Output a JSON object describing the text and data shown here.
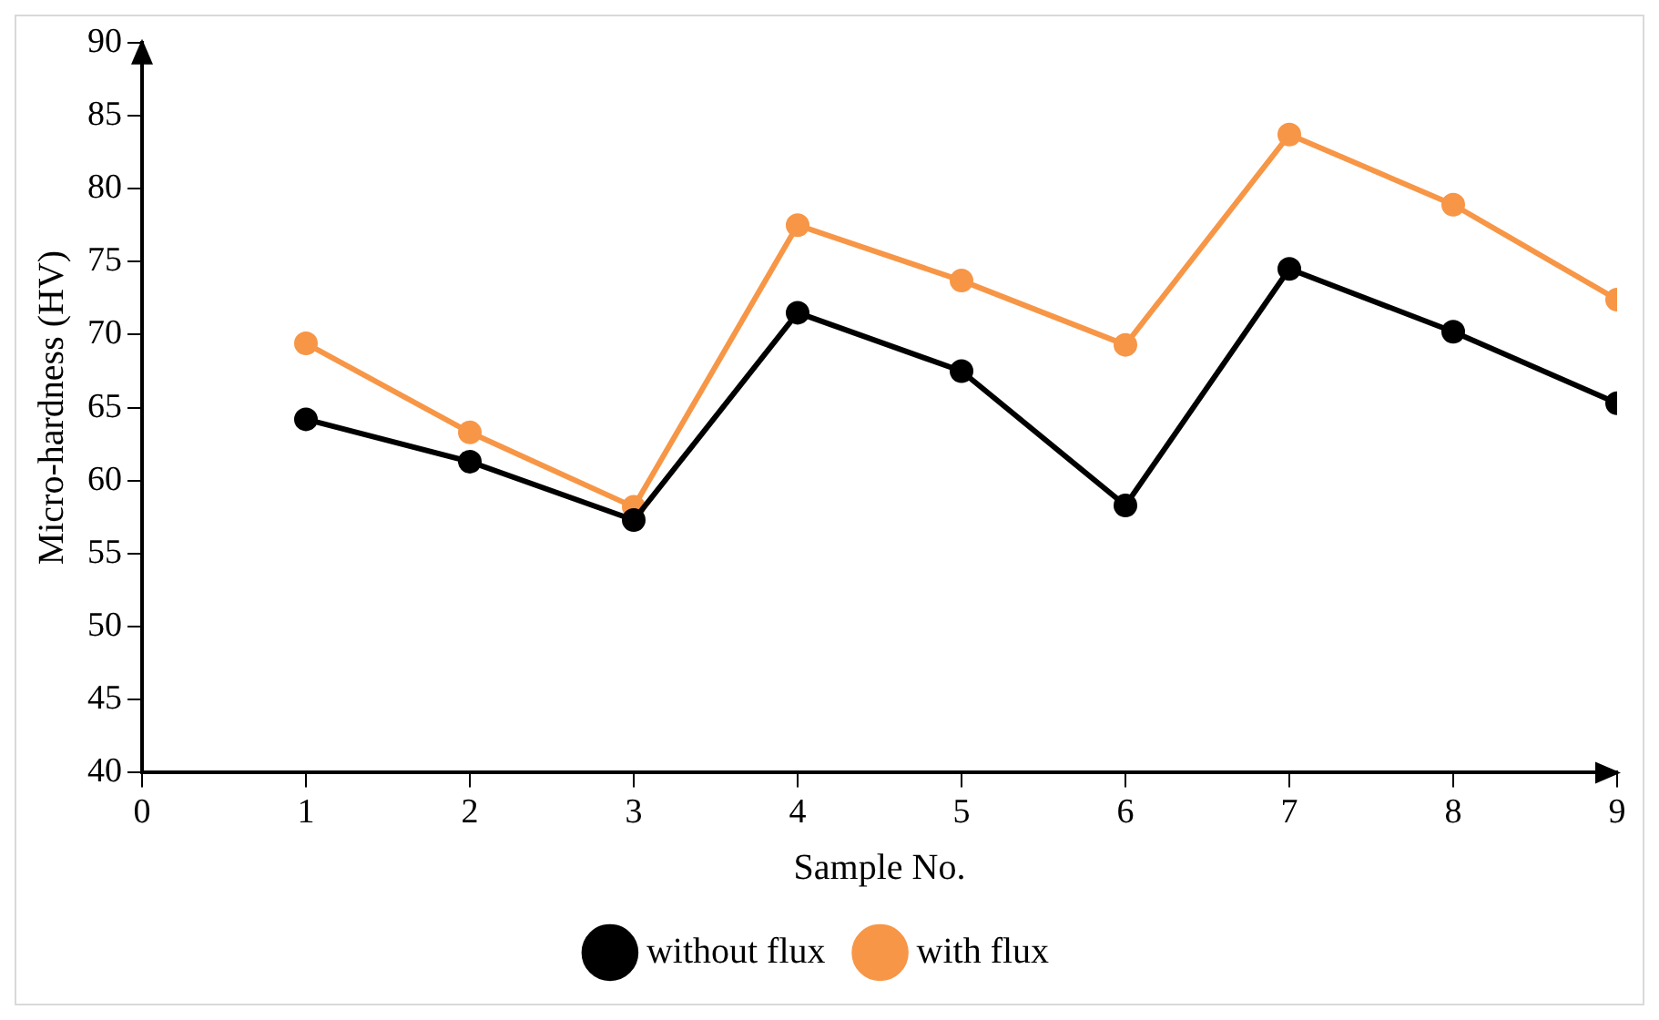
{
  "chart_data": {
    "type": "line",
    "x": [
      1,
      2,
      3,
      4,
      5,
      6,
      7,
      8,
      9
    ],
    "xlabel": "Sample No.",
    "ylabel": "Micro-hardness (HV)",
    "xlim": [
      0,
      9
    ],
    "xticks": [
      0,
      1,
      2,
      3,
      4,
      5,
      6,
      7,
      8,
      9
    ],
    "ylim": [
      40,
      90
    ],
    "yticks": [
      40,
      45,
      50,
      55,
      60,
      65,
      70,
      75,
      80,
      85,
      90
    ],
    "series": [
      {
        "name": "without flux",
        "color": "#000000",
        "values": [
          64.2,
          61.3,
          57.3,
          71.5,
          67.5,
          58.3,
          74.5,
          70.2,
          65.3
        ]
      },
      {
        "name": "with flux",
        "color": "#f79646",
        "values": [
          69.4,
          63.3,
          58.2,
          77.5,
          73.7,
          69.3,
          83.7,
          78.9,
          72.4
        ]
      }
    ],
    "marker": "circle",
    "line_style": "solid",
    "grid": false,
    "legend": "bottom"
  }
}
